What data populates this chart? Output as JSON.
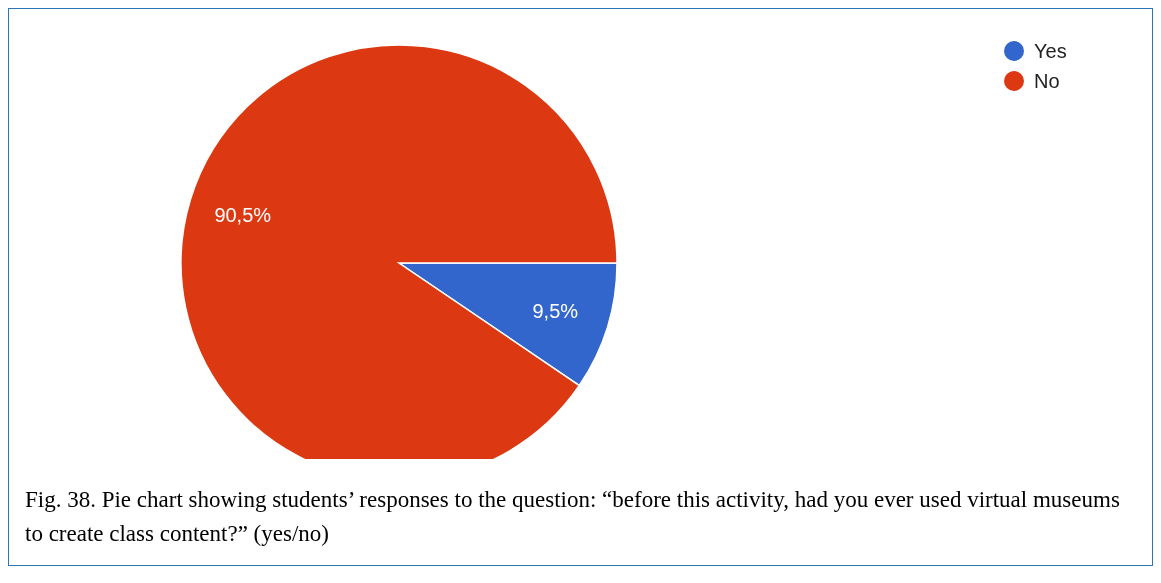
{
  "chart_data": {
    "type": "pie",
    "categories": [
      "Yes",
      "No"
    ],
    "values": [
      9.5,
      90.5
    ],
    "colors": [
      "#3366cc",
      "#dc3912"
    ],
    "value_labels": [
      "9,5%",
      "90,5%"
    ],
    "legend": "top right",
    "annotations": [
      "Fig. 38. Pie chart showing students’ responses to the question: “before this activity, had you ever used virtual museums to create class content?” (yes/no)"
    ]
  }
}
